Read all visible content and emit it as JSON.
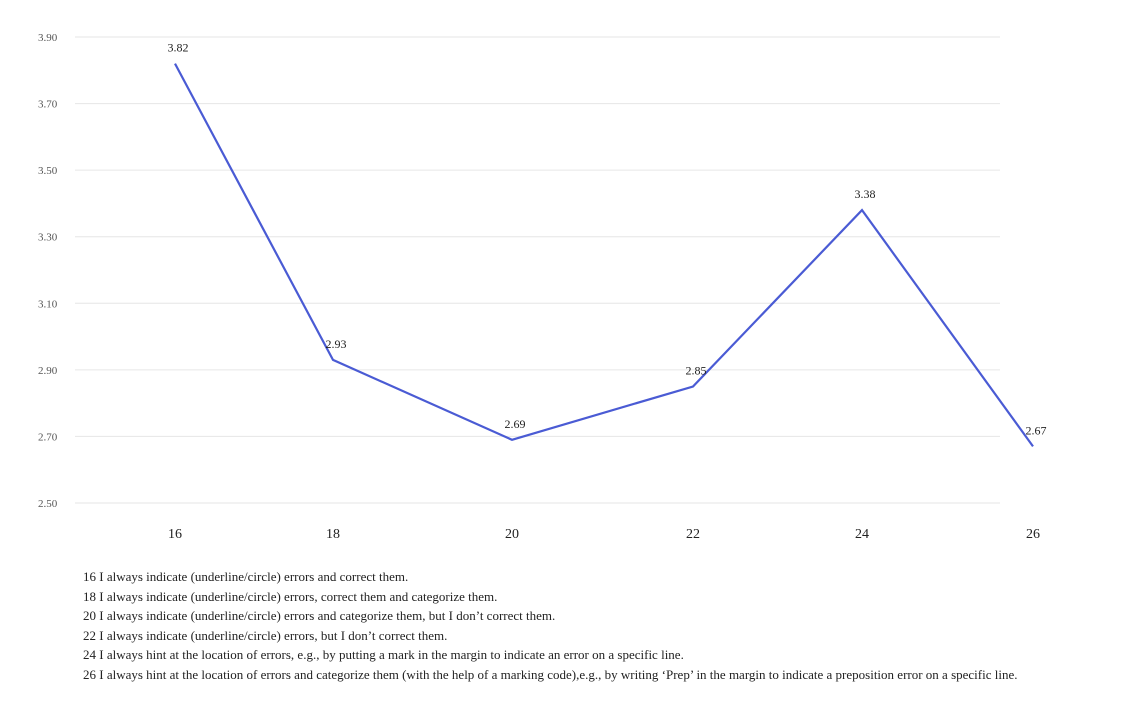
{
  "chart_data": {
    "type": "line",
    "x": [
      "16",
      "18",
      "20",
      "22",
      "24",
      "26"
    ],
    "series": [
      {
        "values": [
          3.82,
          2.93,
          2.69,
          2.85,
          3.38,
          2.67
        ],
        "color": "#4a5bd4"
      }
    ],
    "y_ticks": [
      "3.90",
      "3.70",
      "3.50",
      "3.30",
      "3.10",
      "2.90",
      "2.70",
      "2.50"
    ],
    "ylim": [
      2.5,
      3.9
    ],
    "grid": true,
    "data_labels": [
      "3.82",
      "2.93",
      "2.69",
      "2.85",
      "3.38",
      "2.67"
    ]
  },
  "notes": [
    "16 I always indicate (underline/circle) errors and correct them.",
    "18 I always indicate (underline/circle) errors, correct them and categorize them.",
    "20 I always indicate (underline/circle) errors and categorize them, but I don’t correct them.",
    "22 I always indicate (underline/circle) errors, but I don’t correct them.",
    "24 I always hint at the location of errors, e.g., by putting a mark in the margin to indicate an error on a specific line.",
    "26 I always hint at the location of errors and categorize them (with the help of a marking code),e.g., by writing ‘Prep’ in the margin to indicate a preposition error on a specific line."
  ]
}
